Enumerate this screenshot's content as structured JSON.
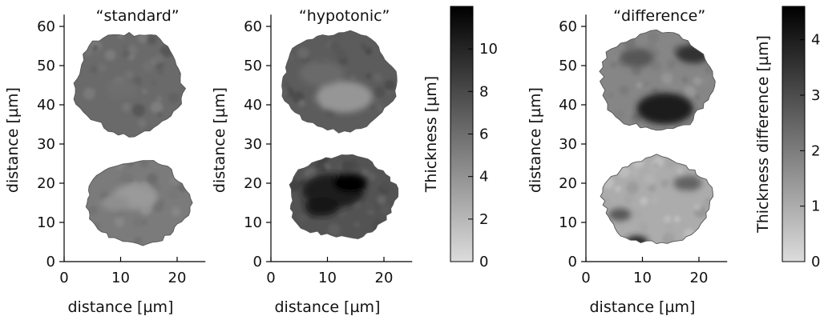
{
  "chart_data": [
    {
      "type": "heatmap",
      "title": "“standard”",
      "xlabel": "distance [µm]",
      "ylabel": "distance [µm]",
      "xlim": [
        0,
        25
      ],
      "ylim": [
        0,
        63
      ],
      "xticks": [
        0,
        10,
        20
      ],
      "yticks": [
        0,
        10,
        20,
        30,
        40,
        50,
        60
      ],
      "colorbar": "thickness",
      "cells": [
        {
          "name": "upper cell",
          "center": [
            11.5,
            45.5
          ],
          "radius": [
            9.5,
            13
          ],
          "value": 6.2,
          "spots": [
            {
              "center": [
                10,
                44
              ],
              "r": 3,
              "value": 6.0
            }
          ]
        },
        {
          "name": "lower cell",
          "center": [
            13.0,
            15.0
          ],
          "radius": [
            9.0,
            10.5
          ],
          "value": 5.3,
          "spots": [
            {
              "center": [
                12.5,
                16.5
              ],
              "r": 4,
              "value": 3.6
            },
            {
              "center": [
                9,
                15
              ],
              "r": 2.5,
              "value": 4.2
            }
          ]
        }
      ]
    },
    {
      "type": "heatmap",
      "title": "“hypotonic”",
      "xlabel": "distance [µm]",
      "ylabel": "distance [µm]",
      "xlim": [
        0,
        25
      ],
      "ylim": [
        0,
        63
      ],
      "xticks": [
        0,
        10,
        20
      ],
      "yticks": [
        0,
        10,
        20,
        30,
        40,
        50,
        60
      ],
      "colorbar": "thickness",
      "cells": [
        {
          "name": "upper cell",
          "center": [
            12.0,
            46.0
          ],
          "radius": [
            10.0,
            12.5
          ],
          "value": 7.0,
          "spots": [
            {
              "center": [
                13,
                42
              ],
              "r": 5,
              "value": 3.8
            },
            {
              "center": [
                9,
                48
              ],
              "r": 4,
              "value": 6.2
            }
          ]
        },
        {
          "name": "lower cell",
          "center": [
            12.5,
            16.5
          ],
          "radius": [
            9.5,
            10.5
          ],
          "value": 7.5,
          "spots": [
            {
              "center": [
                11,
                18
              ],
              "r": 5.5,
              "value": 10.5
            },
            {
              "center": [
                14,
                20
              ],
              "r": 3,
              "value": 12.0
            },
            {
              "center": [
                9,
                14
              ],
              "r": 3,
              "value": 11.0
            }
          ]
        }
      ]
    },
    {
      "type": "heatmap",
      "title": "“difference”",
      "xlabel": "distance [µm]",
      "ylabel": "distance [µm]",
      "xlim": [
        0,
        25
      ],
      "ylim": [
        0,
        63
      ],
      "xticks": [
        0,
        10,
        20
      ],
      "yticks": [
        0,
        10,
        20,
        30,
        40,
        50,
        60
      ],
      "colorbar": "difference",
      "cells": [
        {
          "name": "upper cell",
          "center": [
            12.5,
            46.0
          ],
          "radius": [
            10.0,
            12.5
          ],
          "value": 1.8,
          "spots": [
            {
              "center": [
                14,
                39
              ],
              "r": 5,
              "value": 4.0
            },
            {
              "center": [
                19,
                53
              ],
              "r": 3,
              "value": 3.6
            },
            {
              "center": [
                9,
                52
              ],
              "r": 3,
              "value": 2.8
            }
          ]
        },
        {
          "name": "lower cell",
          "center": [
            12.5,
            15.5
          ],
          "radius": [
            9.5,
            11.0
          ],
          "value": 1.0,
          "spots": [
            {
              "center": [
                9,
                5
              ],
              "r": 2,
              "value": 3.8
            },
            {
              "center": [
                6,
                12
              ],
              "r": 2,
              "value": 2.8
            },
            {
              "center": [
                18,
                20
              ],
              "r": 2.5,
              "value": 2.5
            }
          ]
        }
      ]
    }
  ],
  "colorbars": {
    "thickness": {
      "label": "Thickness [µm]",
      "range": [
        0,
        12
      ],
      "ticks": [
        0,
        2,
        4,
        6,
        8,
        10
      ]
    },
    "difference": {
      "label": "Thickness difference [µm]",
      "range": [
        0,
        4.6
      ],
      "ticks": [
        0,
        1,
        2,
        3,
        4
      ]
    }
  },
  "colors": {
    "light": "#dcdcdc",
    "dark": "#000000",
    "axis": "#000000",
    "outline": "#555555"
  }
}
